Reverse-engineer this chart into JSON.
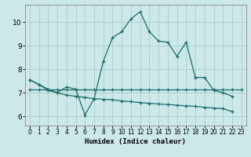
{
  "xlabel": "Humidex (Indice chaleur)",
  "bg_color": "#cce8e8",
  "grid_color": "#aacccc",
  "line_color": "#1a6b6b",
  "xlim": [
    -0.5,
    23.5
  ],
  "ylim": [
    5.6,
    10.75
  ],
  "xticks": [
    0,
    1,
    2,
    3,
    4,
    5,
    6,
    7,
    8,
    9,
    10,
    11,
    12,
    13,
    14,
    15,
    16,
    17,
    18,
    19,
    20,
    21,
    22,
    23
  ],
  "yticks": [
    6,
    7,
    8,
    9,
    10
  ],
  "line1_x": [
    0,
    1,
    2,
    3,
    4,
    5,
    6,
    7,
    8,
    9,
    10,
    11,
    12,
    13,
    14,
    15,
    16,
    17,
    18,
    19,
    20,
    21,
    22
  ],
  "line1_y": [
    7.55,
    7.35,
    7.15,
    7.0,
    7.25,
    7.15,
    6.05,
    6.75,
    8.35,
    9.35,
    9.6,
    10.15,
    10.45,
    9.6,
    9.2,
    9.15,
    8.55,
    9.15,
    7.65,
    7.65,
    7.1,
    7.0,
    6.85
  ],
  "line2_x": [
    0,
    1,
    2,
    3,
    4,
    5,
    6,
    7,
    8,
    9,
    10,
    11,
    12,
    13,
    14,
    15,
    16,
    17,
    18,
    19,
    20,
    21,
    22,
    23
  ],
  "line2_y": [
    7.15,
    7.15,
    7.15,
    7.15,
    7.15,
    7.15,
    7.15,
    7.15,
    7.15,
    7.15,
    7.15,
    7.15,
    7.15,
    7.15,
    7.15,
    7.15,
    7.15,
    7.15,
    7.15,
    7.15,
    7.15,
    7.15,
    7.15,
    7.15
  ],
  "line3_x": [
    0,
    1,
    2,
    3,
    4,
    5,
    6,
    7,
    8,
    9,
    10,
    11,
    12,
    13,
    14,
    15,
    16,
    17,
    18,
    19,
    20,
    21,
    22
  ],
  "line3_y": [
    7.55,
    7.35,
    7.1,
    7.0,
    6.9,
    6.85,
    6.8,
    6.75,
    6.72,
    6.7,
    6.65,
    6.62,
    6.58,
    6.55,
    6.52,
    6.5,
    6.47,
    6.44,
    6.42,
    6.38,
    6.35,
    6.32,
    6.2
  ]
}
